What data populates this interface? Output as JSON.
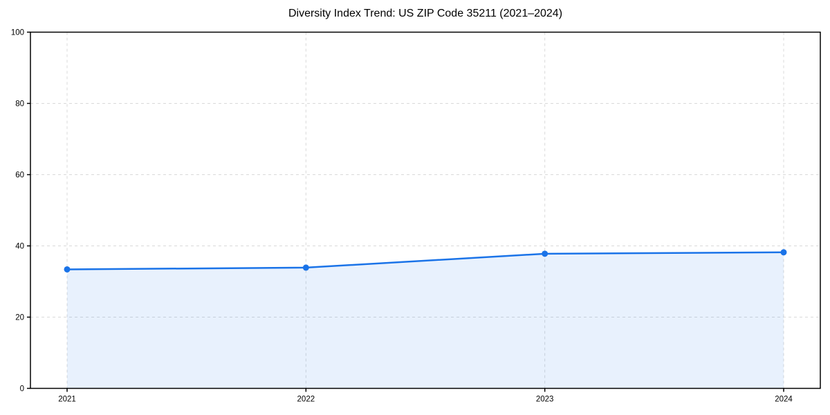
{
  "chart_data": {
    "type": "area",
    "title": "Diversity Index Trend: US ZIP Code 35211 (2021–2024)",
    "series_name": "Diversity Index",
    "x": [
      "2021",
      "2022",
      "2023",
      "2024"
    ],
    "values": [
      33.4,
      33.9,
      37.8,
      38.2
    ],
    "xlabel": "",
    "ylabel": "",
    "ylim": [
      0,
      100
    ],
    "yticks": [
      0,
      20,
      40,
      60,
      80,
      100
    ],
    "grid": true,
    "grid_style": "dashed",
    "legend_position": "none",
    "marker": "circle",
    "colors": {
      "line": "#1a73e8",
      "marker": "#1a73e8",
      "fill": "rgba(26,115,232,0.10)",
      "grid": "#d9d9d9",
      "axis": "#000000",
      "text": "#000000",
      "background": "#ffffff"
    }
  }
}
